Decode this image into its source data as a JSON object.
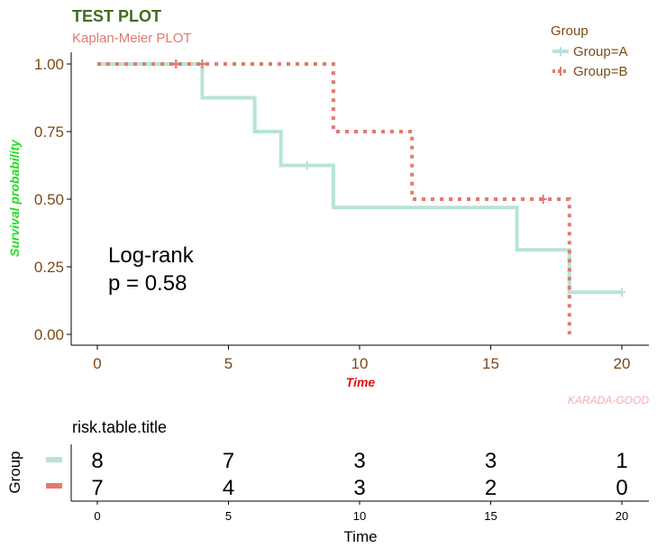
{
  "chart_data": {
    "type": "line",
    "title": "TEST PLOT",
    "subtitle": "Kaplan-Meier PLOT",
    "xlabel": "Time",
    "ylabel": "Survival probability",
    "xlim": [
      0,
      20
    ],
    "ylim": [
      0,
      1
    ],
    "x_ticks": [
      "0",
      "5",
      "10",
      "15",
      "20"
    ],
    "y_ticks": [
      "0.00",
      "0.25",
      "0.50",
      "0.75",
      "1.00"
    ],
    "legend": {
      "title": "Group",
      "position": "top-right"
    },
    "annotation": [
      "Log-rank",
      "p = 0.58"
    ],
    "caption": "KARADA-GOOD",
    "series": [
      {
        "name": "Group=A",
        "color": "#b7e4d6",
        "dash": "solid",
        "steps": [
          [
            0,
            1.0
          ],
          [
            4,
            0.875
          ],
          [
            6,
            0.75
          ],
          [
            7,
            0.625
          ],
          [
            9,
            0.469
          ],
          [
            16,
            0.3125
          ],
          [
            18,
            0.156
          ],
          [
            20,
            0.156
          ]
        ],
        "censored": [
          [
            3,
            1.0
          ],
          [
            8,
            0.625
          ],
          [
            20,
            0.156
          ]
        ]
      },
      {
        "name": "Group=B",
        "color": "#e07b6e",
        "dash": "dotted",
        "steps": [
          [
            0,
            1.0
          ],
          [
            9,
            0.75
          ],
          [
            12,
            0.5
          ],
          [
            18,
            0.0
          ]
        ],
        "censored": [
          [
            3,
            1.0
          ],
          [
            4,
            1.0
          ],
          [
            17,
            0.5
          ]
        ]
      }
    ],
    "risk_table": {
      "title": "risk.table.title",
      "ylabel": "Group",
      "xlabel": "Time",
      "x_ticks": [
        "0",
        "5",
        "10",
        "15",
        "20"
      ],
      "times": [
        0,
        5,
        10,
        15,
        20
      ],
      "rows": [
        {
          "group": "Group=A",
          "values": [
            "8",
            "7",
            "3",
            "3",
            "1"
          ]
        },
        {
          "group": "Group=B",
          "values": [
            "7",
            "4",
            "3",
            "2",
            "0"
          ]
        }
      ]
    }
  }
}
